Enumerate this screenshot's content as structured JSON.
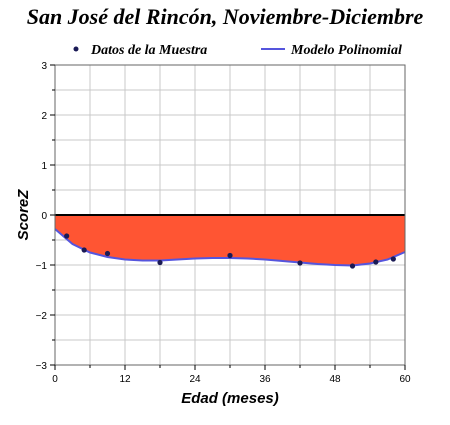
{
  "chart_data": {
    "type": "scatter",
    "title": "San José del Rincón, Noviembre-Diciembre",
    "xlabel": "Edad (meses)",
    "ylabel": "ScoreZ",
    "xlim": [
      0,
      60
    ],
    "ylim": [
      -3,
      3
    ],
    "x_ticks": [
      0,
      12,
      24,
      36,
      48,
      60
    ],
    "y_ticks": [
      -3,
      -2,
      -1,
      0,
      1,
      2,
      3
    ],
    "grid": true,
    "legend_position": "top",
    "series": [
      {
        "name": "Datos de la Muestra",
        "kind": "points",
        "color": "#1a1a55",
        "x": [
          2,
          5,
          9,
          18,
          30,
          42,
          51,
          55,
          58
        ],
        "y": [
          -0.42,
          -0.7,
          -0.77,
          -0.95,
          -0.81,
          -0.96,
          -1.02,
          -0.94,
          -0.88
        ]
      },
      {
        "name": "Modelo Polinomial",
        "kind": "line",
        "color": "#5555dd",
        "fill_color": "#ff5533",
        "x": [
          0,
          3,
          6,
          9,
          12,
          15,
          18,
          21,
          24,
          27,
          30,
          33,
          36,
          39,
          42,
          45,
          48,
          51,
          54,
          57,
          60
        ],
        "y": [
          -0.28,
          -0.58,
          -0.75,
          -0.84,
          -0.89,
          -0.91,
          -0.91,
          -0.89,
          -0.87,
          -0.86,
          -0.86,
          -0.87,
          -0.89,
          -0.92,
          -0.95,
          -0.98,
          -1.0,
          -1.01,
          -0.97,
          -0.89,
          -0.74
        ]
      }
    ]
  }
}
